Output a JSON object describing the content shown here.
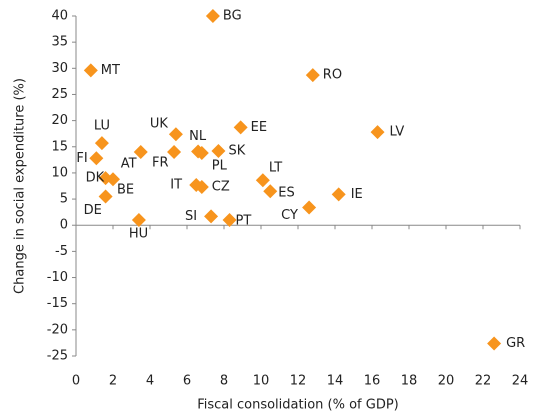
{
  "chart_data": {
    "type": "scatter",
    "xlabel": "Fiscal consolidation (% of GDP)",
    "ylabel": "Change in social expenditure (%)",
    "labels": [
      "BG",
      "MT",
      "RO",
      "LV",
      "EE",
      "UK",
      "LU",
      "NL",
      "FR",
      "PL",
      "SK",
      "AT",
      "FI",
      "DK",
      "BE",
      "DE",
      "HU",
      "IT",
      "CZ",
      "SI",
      "PT",
      "LT",
      "ES",
      "CY",
      "IE",
      "GR"
    ],
    "x": [
      7.4,
      0.8,
      12.8,
      16.3,
      8.9,
      5.4,
      1.4,
      6.6,
      5.3,
      6.8,
      7.7,
      3.5,
      1.1,
      1.6,
      2.0,
      1.6,
      3.4,
      6.5,
      6.8,
      7.3,
      8.3,
      10.1,
      10.5,
      12.6,
      14.2,
      22.6
    ],
    "values": [
      40,
      29.6,
      28.7,
      17.8,
      18.7,
      17.4,
      15.7,
      14.1,
      14.0,
      13.8,
      14.2,
      14.0,
      12.8,
      9.0,
      8.8,
      5.5,
      1.0,
      7.7,
      7.3,
      1.7,
      1.0,
      8.6,
      6.5,
      3.4,
      5.9,
      -22.6
    ],
    "color": "#f7941d",
    "xlim": [
      0,
      24
    ],
    "xticks": [
      0,
      2,
      4,
      6,
      8,
      10,
      12,
      14,
      16,
      18,
      20,
      22,
      24
    ],
    "ylim": [
      -25,
      40
    ],
    "yticks": [
      -25,
      -20,
      -15,
      -10,
      -5,
      0,
      5,
      10,
      15,
      20,
      25,
      30,
      35,
      40
    ]
  }
}
